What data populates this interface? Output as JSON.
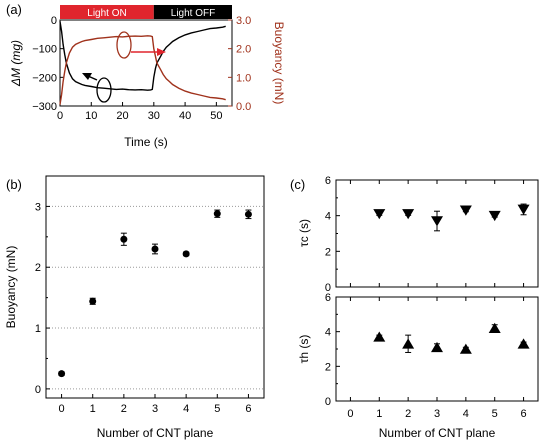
{
  "colors": {
    "axis": "#000000",
    "mass_series": "#000000",
    "buoyancy_series": "#a0321c",
    "light_on_bar": "#e0252d",
    "light_off_bar": "#000000",
    "grid": "#9a9a9a",
    "marker": "#000000"
  },
  "chart_data": [
    {
      "panel": "(a)",
      "type": "line",
      "xlabel": "Time (s)",
      "ylabel_left": "ΔM (mg)",
      "ylabel_right": "Buoyancy (mN)",
      "xlim": [
        0,
        55
      ],
      "ylim_left": [
        -300,
        0
      ],
      "ylim_right": [
        0,
        3.0
      ],
      "xticks": [
        "0",
        "10",
        "20",
        "30",
        "40",
        "50"
      ],
      "yticks_left": [
        "0",
        "−100",
        "−200",
        "−300"
      ],
      "yticks_right": [
        "3.0",
        "2.0",
        "1.0",
        "0.0"
      ],
      "grid": false,
      "annotation_bars": [
        {
          "label": "Light ON",
          "x_start": 0,
          "x_end": 30,
          "color": "#e0252d"
        },
        {
          "label": "Light OFF",
          "x_start": 30,
          "x_end": 55,
          "color": "#000000"
        }
      ],
      "series": [
        {
          "axis": "left",
          "color": "#000000",
          "x": [
            0,
            0.5,
            1,
            1.5,
            2,
            3,
            4,
            5,
            6,
            7,
            8,
            10,
            12,
            14,
            16,
            18,
            20,
            22,
            24,
            26,
            28,
            29,
            29.5,
            30,
            30.5,
            31,
            32,
            33,
            34,
            35,
            36,
            38,
            40,
            42,
            44,
            46,
            48,
            50,
            52,
            53
          ],
          "y": [
            -5,
            -40,
            -85,
            -120,
            -150,
            -185,
            -205,
            -215,
            -220,
            -225,
            -228,
            -232,
            -236,
            -238,
            -240,
            -242,
            -241,
            -243,
            -244,
            -243,
            -245,
            -244,
            -242,
            -200,
            -170,
            -150,
            -130,
            -110,
            -95,
            -85,
            -75,
            -62,
            -52,
            -45,
            -40,
            -35,
            -30,
            -28,
            -25,
            -22
          ]
        },
        {
          "axis": "right",
          "color": "#a0321c",
          "x": [
            0,
            0.5,
            1,
            1.5,
            2,
            3,
            4,
            5,
            6,
            7,
            8,
            10,
            12,
            14,
            16,
            18,
            20,
            22,
            24,
            26,
            28,
            29,
            29.5,
            30,
            31,
            32,
            33,
            34,
            35,
            36,
            38,
            40,
            42,
            44,
            46,
            48,
            50,
            52,
            53
          ],
          "y": [
            0.05,
            0.4,
            0.85,
            1.2,
            1.5,
            1.85,
            2.05,
            2.15,
            2.2,
            2.25,
            2.28,
            2.32,
            2.36,
            2.38,
            2.4,
            2.42,
            2.41,
            2.43,
            2.44,
            2.43,
            2.45,
            2.44,
            2.42,
            2.0,
            1.5,
            1.3,
            1.1,
            0.95,
            0.85,
            0.75,
            0.62,
            0.52,
            0.45,
            0.4,
            0.35,
            0.3,
            0.28,
            0.25,
            0.22
          ]
        }
      ]
    },
    {
      "panel": "(b)",
      "type": "scatter",
      "xlabel": "Number of CNT plane",
      "ylabel": "Buoyancy (mN)",
      "xlim": [
        -0.5,
        6.5
      ],
      "ylim": [
        -0.15,
        3.5
      ],
      "xticks": [
        "0",
        "1",
        "2",
        "3",
        "4",
        "5",
        "6"
      ],
      "yticks": [
        "0",
        "1",
        "2",
        "3"
      ],
      "grid": "horizontal-dotted",
      "marker": "circle",
      "x": [
        0,
        1,
        2,
        3,
        4,
        5,
        6
      ],
      "y": [
        0.25,
        1.44,
        2.46,
        2.3,
        2.22,
        2.88,
        2.87
      ],
      "yerr": [
        0.03,
        0.05,
        0.1,
        0.08,
        0.03,
        0.06,
        0.07
      ]
    },
    {
      "panel": "(c) upper",
      "type": "scatter",
      "ylabel": "τc (s)",
      "xlim": [
        -0.5,
        6.5
      ],
      "ylim": [
        0,
        6
      ],
      "yticks": [
        "0",
        "2",
        "4",
        "6"
      ],
      "grid": false,
      "marker": "triangle-down",
      "x": [
        1,
        2,
        3,
        4,
        5,
        6
      ],
      "y": [
        4.1,
        4.1,
        3.7,
        4.3,
        4.0,
        4.35
      ],
      "yerr": [
        0.08,
        0.08,
        0.55,
        0.08,
        0.08,
        0.3
      ]
    },
    {
      "panel": "(c) lower",
      "type": "scatter",
      "xlabel": "Number of CNT plane",
      "ylabel": "τh (s)",
      "xlim": [
        -0.5,
        6.5
      ],
      "ylim": [
        0,
        6
      ],
      "xticks": [
        "0",
        "1",
        "2",
        "3",
        "4",
        "5",
        "6"
      ],
      "yticks": [
        "0",
        "2",
        "4",
        "6"
      ],
      "grid": false,
      "marker": "triangle-up",
      "x": [
        1,
        2,
        3,
        4,
        5,
        6
      ],
      "y": [
        3.7,
        3.3,
        3.1,
        3.0,
        4.2,
        3.3
      ],
      "yerr": [
        0.1,
        0.5,
        0.2,
        0.1,
        0.2,
        0.1
      ]
    }
  ]
}
